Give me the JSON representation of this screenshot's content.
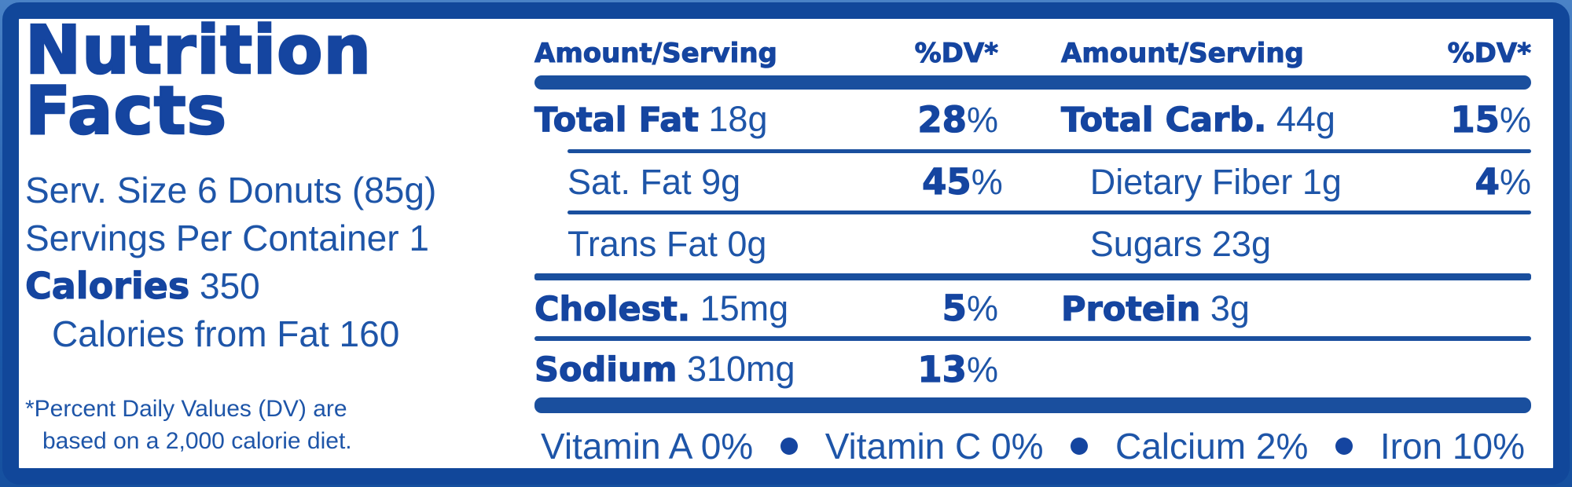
{
  "colors": {
    "frame": "#11479a",
    "text": "#1e55a8",
    "bold": "#1545a0",
    "rule": "#1a4f9e"
  },
  "panel": {
    "title_line1": "Nutrition",
    "title_line2": "Facts",
    "serving_size": "Serv. Size 6 Donuts (85g)",
    "servings_per_container": "Servings Per Container 1",
    "calories_label": "Calories",
    "calories_value": "350",
    "calories_from_fat": "Calories from Fat 160",
    "footnote_line1": "*Percent Daily Values (DV) are",
    "footnote_line2": "based on a 2,000 calorie diet."
  },
  "table": {
    "percent_sign": "%",
    "left_header": {
      "amount": "Amount/Serving",
      "dv": "%DV*"
    },
    "right_header": {
      "amount": "Amount/Serving",
      "dv": "%DV*"
    },
    "rows": [
      {
        "left_name": "Total Fat",
        "left_amount": "18g",
        "left_dv": "28",
        "right_name": "Total Carb.",
        "right_amount": "44g",
        "right_dv": "15"
      },
      {
        "left_name": "Sat. Fat",
        "left_amount": "9g",
        "left_dv": "45",
        "right_name": "Dietary Fiber",
        "right_amount": "1g",
        "right_dv": "4"
      },
      {
        "left_name": "Trans Fat",
        "left_amount": "0g",
        "right_name": "Sugars",
        "right_amount": "23g"
      },
      {
        "left_name": "Cholest.",
        "left_amount": "15mg",
        "left_dv": "5",
        "right_name": "Protein",
        "right_amount": "3g"
      },
      {
        "left_name": "Sodium",
        "left_amount": "310mg",
        "left_dv": "13"
      }
    ]
  },
  "vitamins": {
    "items": [
      "Vitamin A 0%",
      "Vitamin C 0%",
      "Calcium 2%",
      "Iron 10%"
    ]
  }
}
